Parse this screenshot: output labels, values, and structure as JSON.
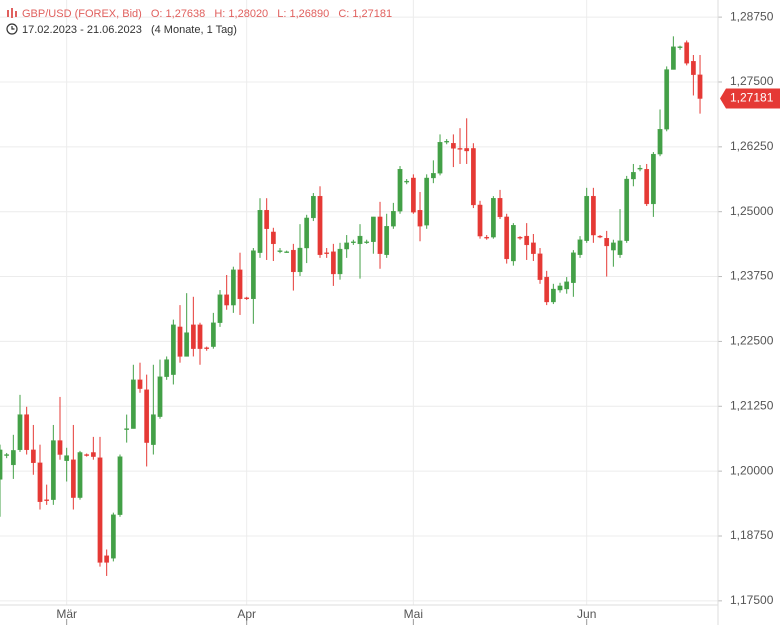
{
  "chart_data": {
    "type": "candlestick",
    "title": "GBP/USD (FOREX, Bid)",
    "ohlc_labels": [
      "O: 1,27638",
      "H: 1,28020",
      "L: 1,26890",
      "C: 1,27181"
    ],
    "subtitle": "17.02.2023 - 21.06.2023",
    "period": "(4 Monate, 1 Tag)",
    "up_color": "#43a047",
    "down_color": "#e53935",
    "grid": true,
    "ylim": [
      1.1742,
      1.2908
    ],
    "yticks": [
      {
        "value": 1.175,
        "label": "1,17500"
      },
      {
        "value": 1.1875,
        "label": "1,18750"
      },
      {
        "value": 1.2,
        "label": "1,20000"
      },
      {
        "value": 1.2125,
        "label": "1,21250"
      },
      {
        "value": 1.225,
        "label": "1,22500"
      },
      {
        "value": 1.2375,
        "label": "1,23750"
      },
      {
        "value": 1.25,
        "label": "1,25000"
      },
      {
        "value": 1.2625,
        "label": "1,26250"
      },
      {
        "value": 1.275,
        "label": "1,27500"
      },
      {
        "value": 1.2875,
        "label": "1,28750"
      }
    ],
    "last_price": {
      "value": 1.27181,
      "label": "1,27181"
    },
    "categories": [
      null,
      null,
      null,
      null,
      null,
      null,
      null,
      null,
      null,
      null,
      "Mär",
      null,
      null,
      null,
      null,
      null,
      null,
      null,
      null,
      null,
      null,
      null,
      null,
      null,
      null,
      null,
      null,
      null,
      null,
      null,
      null,
      null,
      null,
      null,
      null,
      null,
      null,
      "Apr",
      null,
      null,
      null,
      null,
      null,
      null,
      null,
      null,
      null,
      null,
      null,
      null,
      null,
      null,
      null,
      null,
      null,
      null,
      null,
      null,
      null,
      null,
      null,
      null,
      "Mai",
      null,
      null,
      null,
      null,
      null,
      null,
      null,
      null,
      null,
      null,
      null,
      null,
      null,
      null,
      null,
      null,
      null,
      null,
      null,
      null,
      null,
      null,
      null,
      null,
      null,
      "Jun",
      null,
      null,
      null,
      null,
      null,
      null,
      null,
      null,
      null,
      null,
      null,
      null,
      null,
      null,
      null,
      null,
      null
    ],
    "open": [
      1.1984,
      1.203,
      1.2012,
      1.2041,
      1.2109,
      1.2041,
      1.2016,
      1.1945,
      1.1945,
      1.2059,
      1.202,
      1.2022,
      1.1949,
      1.2032,
      1.2036,
      1.2026,
      1.1837,
      1.1832,
      1.1916,
      1.208,
      1.2082,
      1.2176,
      1.2157,
      1.2051,
      1.2105,
      1.2182,
      1.2186,
      1.2278,
      1.2221,
      1.2282,
      1.2282,
      1.2238,
      1.224,
      1.2286,
      1.234,
      1.232,
      1.2388,
      1.2334,
      1.2332,
      1.2421,
      1.2503,
      1.2461,
      1.2423,
      1.2423,
      1.2426,
      1.2384,
      1.243,
      1.2488,
      1.253,
      1.2421,
      1.2423,
      1.238,
      1.2428,
      1.244,
      1.2438,
      1.2442,
      1.2442,
      1.249,
      1.2417,
      1.2472,
      1.2501,
      1.2557,
      1.2565,
      1.2503,
      1.2474,
      1.2565,
      1.2574,
      1.2634,
      1.2632,
      1.2622,
      1.2622,
      1.2622,
      1.2513,
      1.2451,
      1.2451,
      1.2526,
      1.249,
      1.2405,
      1.2451,
      1.2453,
      1.244,
      1.2419,
      1.2374,
      1.2326,
      1.2349,
      1.2351,
      1.2363,
      1.2417,
      1.2444,
      1.253,
      1.2453,
      1.2449,
      1.2426,
      1.2417,
      1.2444,
      1.2563,
      1.2582,
      1.2582,
      1.2515,
      1.2611,
      1.2659,
      1.2774,
      1.2816,
      1.2826,
      1.279,
      1.27638
    ],
    "high": [
      1.2051,
      1.2035,
      1.207,
      1.2147,
      1.2124,
      1.2089,
      1.2051,
      1.1974,
      1.2089,
      1.2143,
      1.2045,
      1.2089,
      1.2039,
      1.2034,
      1.2066,
      1.2066,
      1.1849,
      1.192,
      1.2032,
      1.2109,
      1.2205,
      1.2209,
      1.2186,
      1.2205,
      1.2215,
      1.2221,
      1.2292,
      1.232,
      1.2343,
      1.2336,
      1.2286,
      1.224,
      1.2305,
      1.2349,
      1.2378,
      1.2394,
      1.2421,
      1.2336,
      1.243,
      1.2526,
      1.2526,
      1.2469,
      1.243,
      1.2425,
      1.2438,
      1.2476,
      1.2494,
      1.2536,
      1.2549,
      1.243,
      1.2438,
      1.244,
      1.2455,
      1.2446,
      1.2476,
      1.2446,
      1.249,
      1.2519,
      1.2496,
      1.2517,
      1.2588,
      1.2563,
      1.2572,
      1.2538,
      1.2572,
      1.2599,
      1.2649,
      1.264,
      1.2649,
      1.2661,
      1.268,
      1.2632,
      1.2521,
      1.2455,
      1.253,
      1.2542,
      1.2496,
      1.2478,
      1.2453,
      1.2478,
      1.2457,
      1.243,
      1.2386,
      1.2361,
      1.2363,
      1.2374,
      1.2426,
      1.2453,
      1.2546,
      1.2546,
      1.2455,
      1.2463,
      1.2446,
      1.2505,
      1.2569,
      1.2592,
      1.259,
      1.2592,
      1.2615,
      1.2697,
      1.278,
      1.2838,
      1.282,
      1.283,
      1.2802,
      1.2802
    ],
    "low": [
      1.1912,
      1.2025,
      1.1985,
      1.2037,
      1.2032,
      1.1993,
      1.1926,
      1.1935,
      1.1935,
      1.2022,
      1.198,
      1.1926,
      1.1945,
      1.2028,
      1.2022,
      1.1816,
      1.1798,
      1.1826,
      1.1912,
      1.2055,
      1.2082,
      1.2151,
      1.2009,
      1.2032,
      1.2101,
      1.2176,
      1.2167,
      1.2209,
      1.2221,
      1.2221,
      1.2205,
      1.2232,
      1.2236,
      1.2278,
      1.2311,
      1.2305,
      1.2301,
      1.233,
      1.2284,
      1.2411,
      1.2407,
      1.2405,
      1.242,
      1.2421,
      1.2348,
      1.2376,
      1.2401,
      1.2482,
      1.2411,
      1.2411,
      1.2357,
      1.2369,
      1.2411,
      1.2436,
      1.2371,
      1.2438,
      1.2419,
      1.239,
      1.2411,
      1.2467,
      1.2496,
      1.2553,
      1.2496,
      1.2443,
      1.2467,
      1.2555,
      1.257,
      1.263,
      1.2586,
      1.2592,
      1.2592,
      1.2507,
      1.2448,
      1.2446,
      1.2448,
      1.2486,
      1.24,
      1.2396,
      1.2446,
      1.2407,
      1.2405,
      1.2361,
      1.232,
      1.2322,
      1.2344,
      1.2342,
      1.2336,
      1.2411,
      1.244,
      1.244,
      1.2449,
      1.2375,
      1.2394,
      1.2411,
      1.244,
      1.2549,
      1.2578,
      1.2511,
      1.249,
      1.2607,
      1.2655,
      1.2774,
      1.2812,
      1.2782,
      1.2724,
      1.2689
    ],
    "close": [
      1.2041,
      1.2032,
      1.204,
      1.2109,
      1.2041,
      1.2016,
      1.1941,
      1.1943,
      1.2059,
      1.2032,
      1.203,
      1.1949,
      1.2036,
      1.203,
      1.2028,
      1.1824,
      1.1824,
      1.1916,
      1.2028,
      1.2082,
      1.2176,
      1.2159,
      1.2055,
      1.2109,
      1.2182,
      1.2215,
      1.2282,
      1.2221,
      1.2267,
      1.2236,
      1.2236,
      1.2236,
      1.2286,
      1.234,
      1.232,
      1.2388,
      1.2332,
      1.2332,
      1.2425,
      1.2503,
      1.2467,
      1.2438,
      1.2425,
      1.2423,
      1.2384,
      1.243,
      1.2488,
      1.253,
      1.2417,
      1.2419,
      1.238,
      1.2428,
      1.244,
      1.2442,
      1.2453,
      1.2442,
      1.249,
      1.2419,
      1.2472,
      1.2501,
      1.2582,
      1.2559,
      1.2499,
      1.2472,
      1.2565,
      1.2574,
      1.2634,
      1.2636,
      1.2622,
      1.262,
      1.2617,
      1.2513,
      1.2453,
      1.2449,
      1.2526,
      1.249,
      1.2409,
      1.2474,
      1.2449,
      1.2436,
      1.2419,
      1.2369,
      1.2326,
      1.2351,
      1.2357,
      1.2365,
      1.2421,
      1.2446,
      1.253,
      1.2455,
      1.2451,
      1.2434,
      1.244,
      1.2444,
      1.2563,
      1.2576,
      1.2584,
      1.2515,
      1.2611,
      1.2659,
      1.2774,
      1.2818,
      1.2818,
      1.2786,
      1.2764,
      1.27181
    ]
  }
}
